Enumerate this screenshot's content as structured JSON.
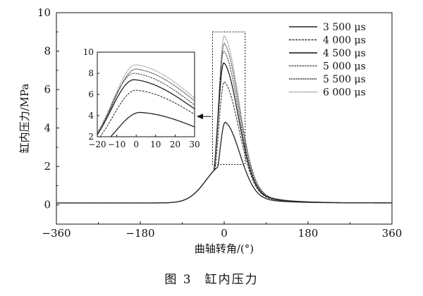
{
  "chart_data": {
    "type": "line",
    "main": {
      "xlabel": "曲轴转角/(°)",
      "ylabel": "缸内压力/MPa",
      "xlim": [
        -360,
        360
      ],
      "ylim": [
        -1,
        10
      ],
      "xticks": [
        -360,
        -180,
        0,
        180,
        360
      ],
      "yticks": [
        0,
        2,
        4,
        6,
        8,
        10
      ],
      "legend_position": "top-right",
      "series": [
        {
          "name": "3 500 μs",
          "peak_x": 2,
          "peak_y": 4.3
        },
        {
          "name": "4 000 μs",
          "peak_x": 0,
          "peak_y": 6.4
        },
        {
          "name": "4 500 μs",
          "peak_x": -1,
          "peak_y": 7.4
        },
        {
          "name": "5 000 μs",
          "peak_x": -1,
          "peak_y": 8.0
        },
        {
          "name": "5 500 μs",
          "peak_x": 0,
          "peak_y": 8.4
        },
        {
          "name": "6 000 μs",
          "peak_x": 0,
          "peak_y": 8.8
        }
      ],
      "baseline_pressure": 0.1
    },
    "inset": {
      "xlim": [
        -20,
        30
      ],
      "ylim": [
        2,
        10
      ],
      "xticks": [
        -20,
        -10,
        0,
        10,
        20,
        30
      ],
      "yticks": [
        2,
        4,
        6,
        8,
        10
      ],
      "zoom_box_x": [
        -25,
        45
      ],
      "zoom_box_y": [
        2.1,
        9.0
      ]
    }
  },
  "caption": {
    "figure": "图 3",
    "title": "缸内压力"
  }
}
